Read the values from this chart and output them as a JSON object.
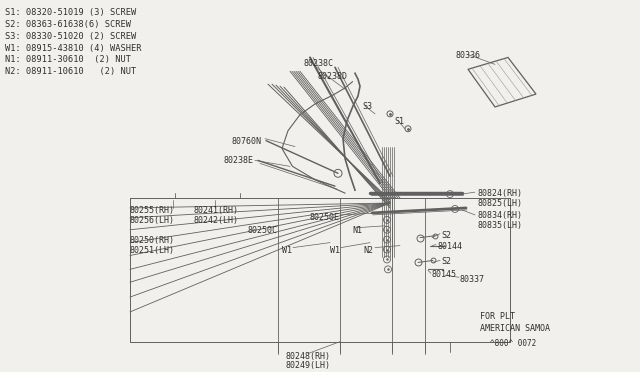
{
  "bg_color": "#f2f0ec",
  "legend_items": [
    "S1: 08320-51019 (3) SCREW",
    "S2: 08363-61638(6) SCREW",
    "S3: 08330-51020 (2) SCREW",
    "W1: 08915-43810 (4) WASHER",
    "N1: 08911-30610  (2) NUT",
    "N2: 08911-10610   (2) NUT"
  ],
  "footer_line1": "FOR PLT",
  "footer_line2": "AMERICAN SAMOA",
  "footer_code": "^800^ 0072",
  "line_color": "#606060",
  "text_color": "#303030",
  "font_size": 6.0,
  "legend_font_size": 6.2
}
